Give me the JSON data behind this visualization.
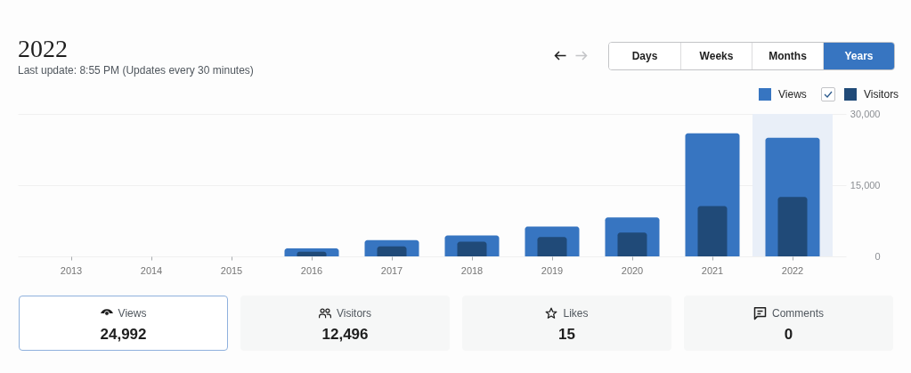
{
  "chart_data": [
    {
      "type": "bar",
      "title": "2022",
      "subtitle": "Last update: 8:55 PM (Updates every 30 minutes)",
      "categories": [
        "2013",
        "2014",
        "2015",
        "2016",
        "2017",
        "2018",
        "2019",
        "2020",
        "2021",
        "2022"
      ],
      "series": [
        {
          "name": "Views",
          "color": "#3775c1",
          "values": [
            0,
            0,
            0,
            1700,
            3400,
            4400,
            6300,
            8200,
            25900,
            25000
          ]
        },
        {
          "name": "Visitors",
          "color": "#204a78",
          "values": [
            0,
            0,
            0,
            1000,
            2100,
            3100,
            4100,
            5000,
            10600,
            12500
          ]
        }
      ],
      "ylim": [
        0,
        30000
      ],
      "yticks": [
        0,
        {
          "value": 15000,
          "label": "15,000"
        },
        {
          "value": 30000,
          "label": "30,000"
        }
      ],
      "grid": "y",
      "legend": "top right",
      "bands": [
        {
          "axis": "x",
          "from": "2022",
          "to": "2022",
          "color": "#e9eff8"
        }
      ]
    },
    {
      "type": "other",
      "categories": [
        "Days",
        "Weeks",
        "Months",
        "Years"
      ],
      "colors": [
        "#ffffff",
        "#ffffff",
        "#ffffff",
        "#3775c1"
      ]
    },
    {
      "type": "other",
      "categories": [
        "Views",
        "Visitors",
        "Likes",
        "Comments"
      ],
      "annotations": [
        "24,992",
        "12,496",
        "15",
        "0"
      ],
      "colors": [
        "#ffffff",
        "#f6f7f7",
        "#f6f7f7",
        "#f6f7f7"
      ]
    }
  ]
}
